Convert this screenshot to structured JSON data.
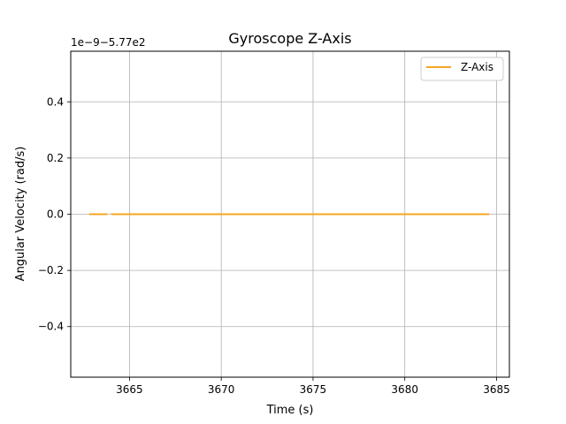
{
  "chart_data": {
    "type": "line",
    "title": "Gyroscope Z-Axis",
    "xlabel": "Time (s)",
    "ylabel": "Angular Velocity (rad/s)",
    "offset_label": "1e−9−5.77e2",
    "xlim": [
      3661.8,
      3685.7
    ],
    "ylim": [
      -0.58,
      0.58
    ],
    "x_ticks": [
      3665,
      3670,
      3675,
      3680,
      3685
    ],
    "x_tick_labels": [
      "3665",
      "3670",
      "3675",
      "3680",
      "3685"
    ],
    "y_ticks": [
      -0.4,
      -0.2,
      0.0,
      0.2,
      0.4
    ],
    "y_tick_labels": [
      "−0.4",
      "−0.2",
      "0.0",
      "0.2",
      "0.4"
    ],
    "grid": true,
    "legend_position": "upper right",
    "series": [
      {
        "name": "Z-Axis",
        "color": "#f5a623",
        "segments": [
          {
            "x": [
              3662.8,
              3663.0,
              3663.2,
              3663.4,
              3663.6,
              3663.8
            ],
            "y": [
              0,
              0,
              0,
              0,
              0,
              0
            ]
          },
          {
            "x": [
              3664.0,
              3666.0,
              3668.0,
              3670.0,
              3672.0,
              3674.0,
              3676.0,
              3678.0,
              3680.0,
              3682.0,
              3684.0,
              3684.6
            ],
            "y": [
              0,
              0,
              0,
              0,
              0,
              0,
              0,
              0,
              0,
              0,
              0,
              0
            ]
          }
        ]
      }
    ]
  }
}
